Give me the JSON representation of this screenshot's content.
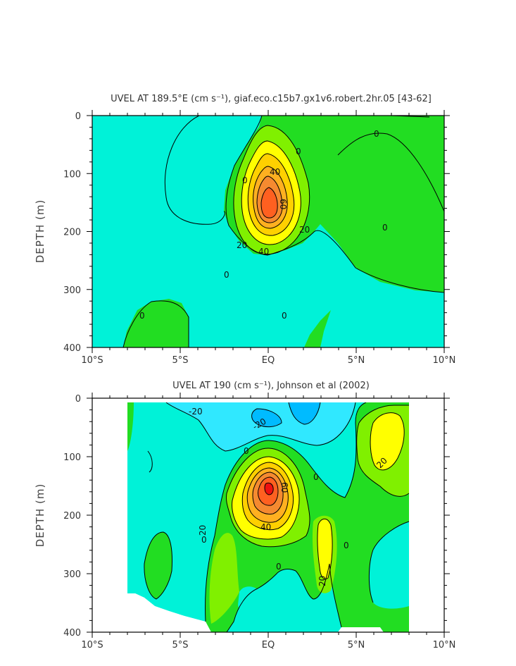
{
  "chart_data": [
    {
      "type": "heatmap",
      "subtype": "filled contour",
      "title": "UVEL AT 189.5°E (cm s⁻¹), giaf.eco.c15b7.gx1v6.robert.2hr.05 [43-62]",
      "xlabel": "",
      "ylabel": "DEPTH (m)",
      "x_ticks": [
        "10°S",
        "5°S",
        "EQ",
        "5°N",
        "10°N"
      ],
      "y_ticks": [
        "0",
        "100",
        "200",
        "300",
        "400"
      ],
      "xlim": [
        -10,
        10
      ],
      "ylim": [
        400,
        0
      ],
      "y_inverted": true,
      "contour_interval": 10,
      "contour_labels": [
        "0",
        "0",
        "0",
        "0",
        "0",
        "0",
        "0",
        "20",
        "20",
        "40",
        "40",
        "60"
      ],
      "core": {
        "lat": 0,
        "depth": 155,
        "max": 70
      },
      "levels": [
        {
          "min": -10,
          "max": 0,
          "color": "#00F2D8"
        },
        {
          "min": 0,
          "max": 10,
          "color": "#22DD22"
        },
        {
          "min": 10,
          "max": 20,
          "color": "#80F000"
        },
        {
          "min": 20,
          "max": 30,
          "color": "#FFFF00"
        },
        {
          "min": 30,
          "max": 40,
          "color": "#FFD000"
        },
        {
          "min": 40,
          "max": 50,
          "color": "#FFB020"
        },
        {
          "min": 50,
          "max": 60,
          "color": "#F58A30"
        },
        {
          "min": 60,
          "max": 70,
          "color": "#FF6020"
        }
      ]
    },
    {
      "type": "heatmap",
      "subtype": "filled contour",
      "title": "UVEL AT 190 (cm s⁻¹), Johnson et al (2002)",
      "xlabel": "",
      "ylabel": "DEPTH (m)",
      "x_ticks": [
        "10°S",
        "5°S",
        "EQ",
        "5°N",
        "10°N"
      ],
      "y_ticks": [
        "0",
        "100",
        "200",
        "300",
        "400"
      ],
      "xlim": [
        -10,
        10
      ],
      "ylim": [
        400,
        0
      ],
      "y_inverted": true,
      "data_lat_range": [
        -8,
        8
      ],
      "contour_interval": 10,
      "contour_labels": [
        "-20",
        "-20",
        "0",
        "0",
        "0",
        "0",
        "0",
        "20",
        "20",
        "20",
        "40",
        "60"
      ],
      "core": {
        "lat": 0,
        "depth": 150,
        "max": 80
      },
      "levels": [
        {
          "min": -30,
          "max": -20,
          "color": "#00BBFF"
        },
        {
          "min": -20,
          "max": -10,
          "color": "#30E8FF"
        },
        {
          "min": -10,
          "max": 0,
          "color": "#00F2D8"
        },
        {
          "min": 0,
          "max": 10,
          "color": "#22DD22"
        },
        {
          "min": 10,
          "max": 20,
          "color": "#80F000"
        },
        {
          "min": 20,
          "max": 30,
          "color": "#FFFF00"
        },
        {
          "min": 30,
          "max": 40,
          "color": "#FFD000"
        },
        {
          "min": 40,
          "max": 50,
          "color": "#FFB020"
        },
        {
          "min": 50,
          "max": 60,
          "color": "#F58A30"
        },
        {
          "min": 60,
          "max": 70,
          "color": "#FF6020"
        },
        {
          "min": 70,
          "max": 80,
          "color": "#EE1010"
        }
      ]
    }
  ]
}
